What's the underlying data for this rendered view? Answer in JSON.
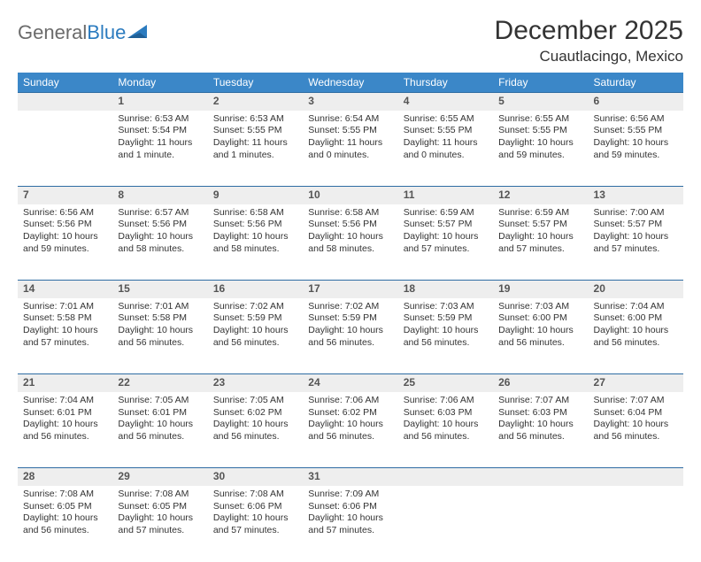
{
  "logo": {
    "word1": "General",
    "word2": "Blue"
  },
  "title": "December 2025",
  "location": "Cuautlacingo, Mexico",
  "header_bg": "#3b87c8",
  "daynum_bg": "#eeeeee",
  "rule_color": "#2e6ca3",
  "text_color": "#333333",
  "days": [
    "Sunday",
    "Monday",
    "Tuesday",
    "Wednesday",
    "Thursday",
    "Friday",
    "Saturday"
  ],
  "weeks": [
    [
      {
        "n": "",
        "sr": "",
        "ss": "",
        "dl": ""
      },
      {
        "n": "1",
        "sr": "Sunrise: 6:53 AM",
        "ss": "Sunset: 5:54 PM",
        "dl": "Daylight: 11 hours and 1 minute."
      },
      {
        "n": "2",
        "sr": "Sunrise: 6:53 AM",
        "ss": "Sunset: 5:55 PM",
        "dl": "Daylight: 11 hours and 1 minutes."
      },
      {
        "n": "3",
        "sr": "Sunrise: 6:54 AM",
        "ss": "Sunset: 5:55 PM",
        "dl": "Daylight: 11 hours and 0 minutes."
      },
      {
        "n": "4",
        "sr": "Sunrise: 6:55 AM",
        "ss": "Sunset: 5:55 PM",
        "dl": "Daylight: 11 hours and 0 minutes."
      },
      {
        "n": "5",
        "sr": "Sunrise: 6:55 AM",
        "ss": "Sunset: 5:55 PM",
        "dl": "Daylight: 10 hours and 59 minutes."
      },
      {
        "n": "6",
        "sr": "Sunrise: 6:56 AM",
        "ss": "Sunset: 5:55 PM",
        "dl": "Daylight: 10 hours and 59 minutes."
      }
    ],
    [
      {
        "n": "7",
        "sr": "Sunrise: 6:56 AM",
        "ss": "Sunset: 5:56 PM",
        "dl": "Daylight: 10 hours and 59 minutes."
      },
      {
        "n": "8",
        "sr": "Sunrise: 6:57 AM",
        "ss": "Sunset: 5:56 PM",
        "dl": "Daylight: 10 hours and 58 minutes."
      },
      {
        "n": "9",
        "sr": "Sunrise: 6:58 AM",
        "ss": "Sunset: 5:56 PM",
        "dl": "Daylight: 10 hours and 58 minutes."
      },
      {
        "n": "10",
        "sr": "Sunrise: 6:58 AM",
        "ss": "Sunset: 5:56 PM",
        "dl": "Daylight: 10 hours and 58 minutes."
      },
      {
        "n": "11",
        "sr": "Sunrise: 6:59 AM",
        "ss": "Sunset: 5:57 PM",
        "dl": "Daylight: 10 hours and 57 minutes."
      },
      {
        "n": "12",
        "sr": "Sunrise: 6:59 AM",
        "ss": "Sunset: 5:57 PM",
        "dl": "Daylight: 10 hours and 57 minutes."
      },
      {
        "n": "13",
        "sr": "Sunrise: 7:00 AM",
        "ss": "Sunset: 5:57 PM",
        "dl": "Daylight: 10 hours and 57 minutes."
      }
    ],
    [
      {
        "n": "14",
        "sr": "Sunrise: 7:01 AM",
        "ss": "Sunset: 5:58 PM",
        "dl": "Daylight: 10 hours and 57 minutes."
      },
      {
        "n": "15",
        "sr": "Sunrise: 7:01 AM",
        "ss": "Sunset: 5:58 PM",
        "dl": "Daylight: 10 hours and 56 minutes."
      },
      {
        "n": "16",
        "sr": "Sunrise: 7:02 AM",
        "ss": "Sunset: 5:59 PM",
        "dl": "Daylight: 10 hours and 56 minutes."
      },
      {
        "n": "17",
        "sr": "Sunrise: 7:02 AM",
        "ss": "Sunset: 5:59 PM",
        "dl": "Daylight: 10 hours and 56 minutes."
      },
      {
        "n": "18",
        "sr": "Sunrise: 7:03 AM",
        "ss": "Sunset: 5:59 PM",
        "dl": "Daylight: 10 hours and 56 minutes."
      },
      {
        "n": "19",
        "sr": "Sunrise: 7:03 AM",
        "ss": "Sunset: 6:00 PM",
        "dl": "Daylight: 10 hours and 56 minutes."
      },
      {
        "n": "20",
        "sr": "Sunrise: 7:04 AM",
        "ss": "Sunset: 6:00 PM",
        "dl": "Daylight: 10 hours and 56 minutes."
      }
    ],
    [
      {
        "n": "21",
        "sr": "Sunrise: 7:04 AM",
        "ss": "Sunset: 6:01 PM",
        "dl": "Daylight: 10 hours and 56 minutes."
      },
      {
        "n": "22",
        "sr": "Sunrise: 7:05 AM",
        "ss": "Sunset: 6:01 PM",
        "dl": "Daylight: 10 hours and 56 minutes."
      },
      {
        "n": "23",
        "sr": "Sunrise: 7:05 AM",
        "ss": "Sunset: 6:02 PM",
        "dl": "Daylight: 10 hours and 56 minutes."
      },
      {
        "n": "24",
        "sr": "Sunrise: 7:06 AM",
        "ss": "Sunset: 6:02 PM",
        "dl": "Daylight: 10 hours and 56 minutes."
      },
      {
        "n": "25",
        "sr": "Sunrise: 7:06 AM",
        "ss": "Sunset: 6:03 PM",
        "dl": "Daylight: 10 hours and 56 minutes."
      },
      {
        "n": "26",
        "sr": "Sunrise: 7:07 AM",
        "ss": "Sunset: 6:03 PM",
        "dl": "Daylight: 10 hours and 56 minutes."
      },
      {
        "n": "27",
        "sr": "Sunrise: 7:07 AM",
        "ss": "Sunset: 6:04 PM",
        "dl": "Daylight: 10 hours and 56 minutes."
      }
    ],
    [
      {
        "n": "28",
        "sr": "Sunrise: 7:08 AM",
        "ss": "Sunset: 6:05 PM",
        "dl": "Daylight: 10 hours and 56 minutes."
      },
      {
        "n": "29",
        "sr": "Sunrise: 7:08 AM",
        "ss": "Sunset: 6:05 PM",
        "dl": "Daylight: 10 hours and 57 minutes."
      },
      {
        "n": "30",
        "sr": "Sunrise: 7:08 AM",
        "ss": "Sunset: 6:06 PM",
        "dl": "Daylight: 10 hours and 57 minutes."
      },
      {
        "n": "31",
        "sr": "Sunrise: 7:09 AM",
        "ss": "Sunset: 6:06 PM",
        "dl": "Daylight: 10 hours and 57 minutes."
      },
      {
        "n": "",
        "sr": "",
        "ss": "",
        "dl": ""
      },
      {
        "n": "",
        "sr": "",
        "ss": "",
        "dl": ""
      },
      {
        "n": "",
        "sr": "",
        "ss": "",
        "dl": ""
      }
    ]
  ]
}
